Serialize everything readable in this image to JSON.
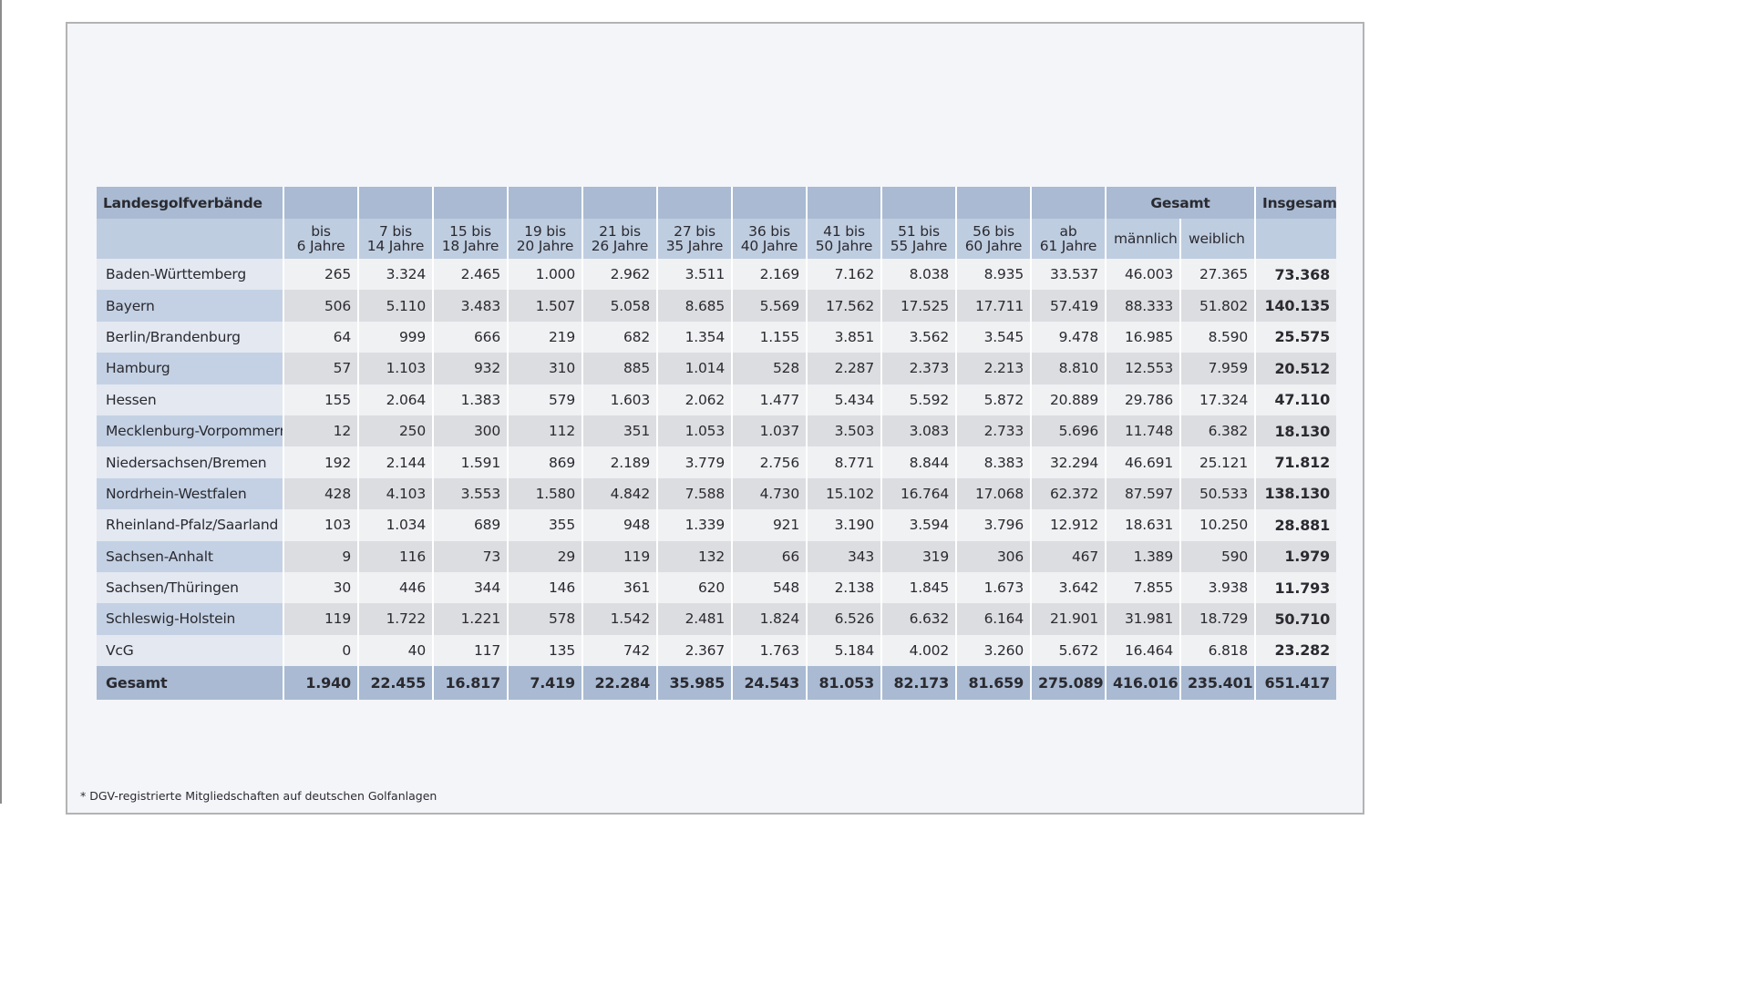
{
  "header": {
    "region_title": "Landesgolfverbände",
    "gesamt_title": "Gesamt",
    "insgesamt_title": "Insgesamt",
    "age_groups": [
      [
        "bis",
        "6 Jahre"
      ],
      [
        "7 bis",
        "14 Jahre"
      ],
      [
        "15 bis",
        "18 Jahre"
      ],
      [
        "19 bis",
        "20 Jahre"
      ],
      [
        "21 bis",
        "26 Jahre"
      ],
      [
        "27 bis",
        "35 Jahre"
      ],
      [
        "36 bis",
        "40 Jahre"
      ],
      [
        "41 bis",
        "50 Jahre"
      ],
      [
        "51 bis",
        "55 Jahre"
      ],
      [
        "56 bis",
        "60 Jahre"
      ],
      [
        "ab",
        "61 Jahre"
      ]
    ],
    "male": "männlich",
    "female": "weiblich"
  },
  "rows": [
    {
      "region": "Baden-Württemberg",
      "values": [
        "265",
        "3.324",
        "2.465",
        "1.000",
        "2.962",
        "3.511",
        "2.169",
        "7.162",
        "8.038",
        "8.935",
        "33.537",
        "46.003",
        "27.365"
      ],
      "total": "73.368"
    },
    {
      "region": "Bayern",
      "values": [
        "506",
        "5.110",
        "3.483",
        "1.507",
        "5.058",
        "8.685",
        "5.569",
        "17.562",
        "17.525",
        "17.711",
        "57.419",
        "88.333",
        "51.802"
      ],
      "total": "140.135"
    },
    {
      "region": "Berlin/Brandenburg",
      "values": [
        "64",
        "999",
        "666",
        "219",
        "682",
        "1.354",
        "1.155",
        "3.851",
        "3.562",
        "3.545",
        "9.478",
        "16.985",
        "8.590"
      ],
      "total": "25.575"
    },
    {
      "region": "Hamburg",
      "values": [
        "57",
        "1.103",
        "932",
        "310",
        "885",
        "1.014",
        "528",
        "2.287",
        "2.373",
        "2.213",
        "8.810",
        "12.553",
        "7.959"
      ],
      "total": "20.512"
    },
    {
      "region": "Hessen",
      "values": [
        "155",
        "2.064",
        "1.383",
        "579",
        "1.603",
        "2.062",
        "1.477",
        "5.434",
        "5.592",
        "5.872",
        "20.889",
        "29.786",
        "17.324"
      ],
      "total": "47.110"
    },
    {
      "region": "Mecklenburg-Vorpommern",
      "values": [
        "12",
        "250",
        "300",
        "112",
        "351",
        "1.053",
        "1.037",
        "3.503",
        "3.083",
        "2.733",
        "5.696",
        "11.748",
        "6.382"
      ],
      "total": "18.130"
    },
    {
      "region": "Niedersachsen/Bremen",
      "values": [
        "192",
        "2.144",
        "1.591",
        "869",
        "2.189",
        "3.779",
        "2.756",
        "8.771",
        "8.844",
        "8.383",
        "32.294",
        "46.691",
        "25.121"
      ],
      "total": "71.812"
    },
    {
      "region": "Nordrhein-Westfalen",
      "values": [
        "428",
        "4.103",
        "3.553",
        "1.580",
        "4.842",
        "7.588",
        "4.730",
        "15.102",
        "16.764",
        "17.068",
        "62.372",
        "87.597",
        "50.533"
      ],
      "total": "138.130"
    },
    {
      "region": "Rheinland-Pfalz/Saarland",
      "values": [
        "103",
        "1.034",
        "689",
        "355",
        "948",
        "1.339",
        "921",
        "3.190",
        "3.594",
        "3.796",
        "12.912",
        "18.631",
        "10.250"
      ],
      "total": "28.881"
    },
    {
      "region": "Sachsen-Anhalt",
      "values": [
        "9",
        "116",
        "73",
        "29",
        "119",
        "132",
        "66",
        "343",
        "319",
        "306",
        "467",
        "1.389",
        "590"
      ],
      "total": "1.979"
    },
    {
      "region": "Sachsen/Thüringen",
      "values": [
        "30",
        "446",
        "344",
        "146",
        "361",
        "620",
        "548",
        "2.138",
        "1.845",
        "1.673",
        "3.642",
        "7.855",
        "3.938"
      ],
      "total": "11.793"
    },
    {
      "region": "Schleswig-Holstein",
      "values": [
        "119",
        "1.722",
        "1.221",
        "578",
        "1.542",
        "2.481",
        "1.824",
        "6.526",
        "6.632",
        "6.164",
        "21.901",
        "31.981",
        "18.729"
      ],
      "total": "50.710"
    },
    {
      "region": "VcG",
      "values": [
        "0",
        "40",
        "117",
        "135",
        "742",
        "2.367",
        "1.763",
        "5.184",
        "4.002",
        "3.260",
        "5.672",
        "16.464",
        "6.818"
      ],
      "total": "23.282"
    }
  ],
  "footer_row": {
    "label": "Gesamt",
    "values": [
      "1.940",
      "22.455",
      "16.817",
      "7.419",
      "22.284",
      "35.985",
      "24.543",
      "81.053",
      "82.173",
      "81.659",
      "275.089",
      "416.016",
      "235.401"
    ],
    "total": "651.417"
  },
  "footnote": "*  DGV-registrierte Mitgliedschaften auf deutschen Golfanlagen"
}
